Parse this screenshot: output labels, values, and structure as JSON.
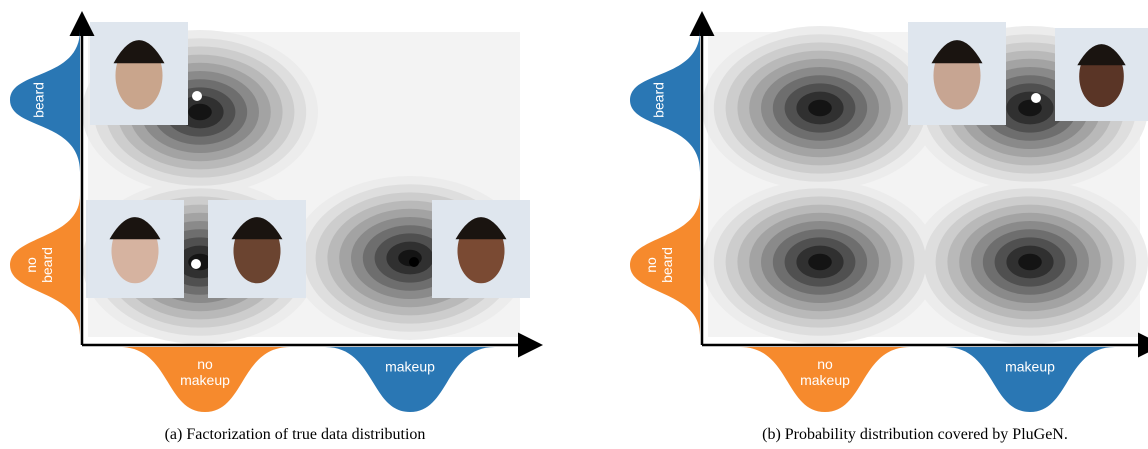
{
  "panels": [
    {
      "beard": "beard",
      "no_beard": [
        "no",
        "beard"
      ],
      "no_makeup": [
        "no",
        "makeup"
      ],
      "makeup": "makeup",
      "caption": "(a) Factorization of true data distribution"
    },
    {
      "beard": "beard",
      "no_beard": [
        "no",
        "beard"
      ],
      "no_makeup": [
        "no",
        "makeup"
      ],
      "makeup": "makeup",
      "caption": "(b) Probability distribution covered by PluGeN."
    }
  ]
}
